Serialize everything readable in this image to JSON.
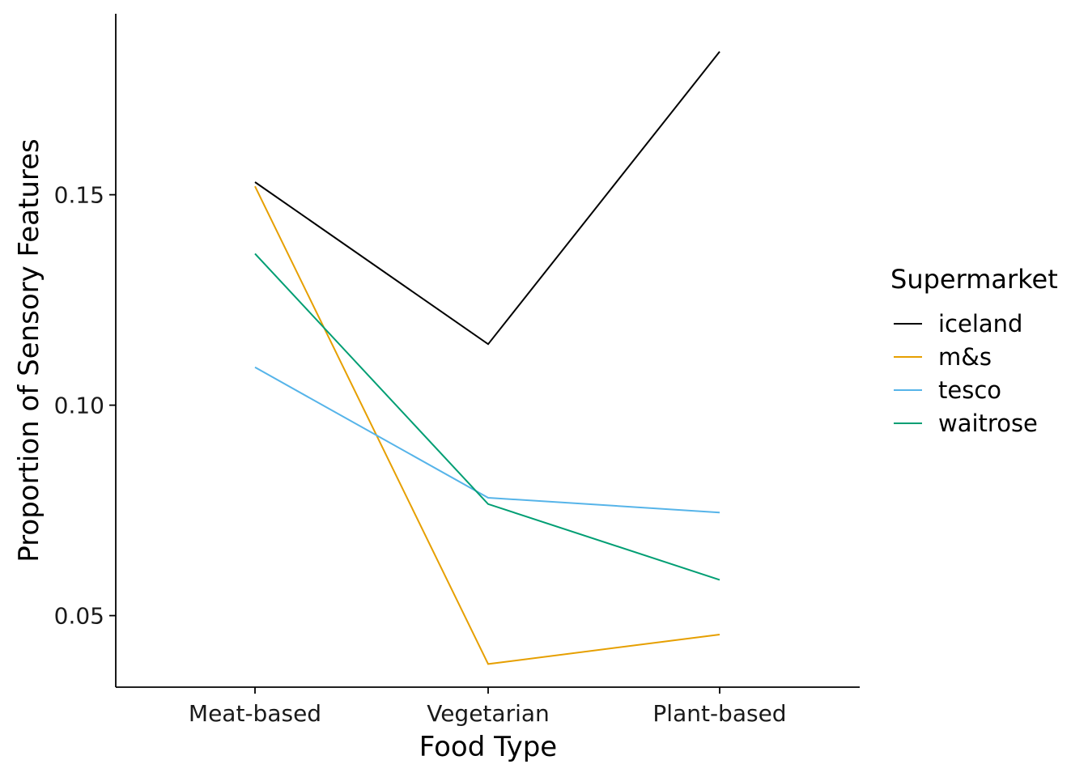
{
  "chart_data": {
    "type": "line",
    "title": "",
    "xlabel": "Food Type",
    "ylabel": "Proportion of Sensory Features",
    "categories": [
      "Meat-based",
      "Vegetarian",
      "Plant-based"
    ],
    "ylim": [
      0.033,
      0.193
    ],
    "yticks": [
      0.05,
      0.1,
      0.15
    ],
    "ytick_labels": [
      "0.05",
      "0.10",
      "0.15"
    ],
    "grid": false,
    "legend": {
      "title": "Supermarket",
      "placement": "right"
    },
    "series": [
      {
        "name": "iceland",
        "color": "#000000",
        "values": [
          0.153,
          0.1145,
          0.184
        ]
      },
      {
        "name": "m&s",
        "color": "#E69F00",
        "values": [
          0.152,
          0.0385,
          0.0455
        ]
      },
      {
        "name": "tesco",
        "color": "#56B4E9",
        "values": [
          0.109,
          0.078,
          0.0745
        ]
      },
      {
        "name": "waitrose",
        "color": "#009E73",
        "values": [
          0.136,
          0.0765,
          0.0585
        ]
      }
    ]
  }
}
